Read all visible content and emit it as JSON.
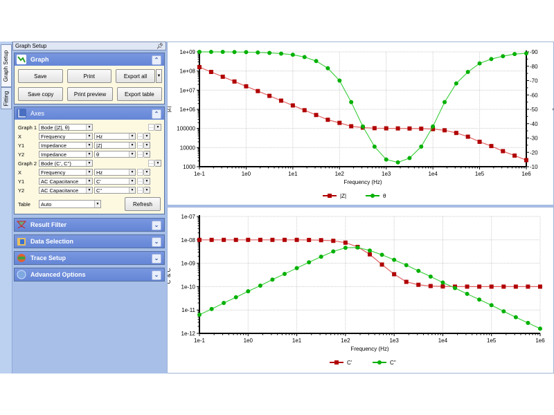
{
  "vertical_tabs": [
    {
      "label": "Graph Setup",
      "active": true
    },
    {
      "label": "Fitting",
      "active": false
    }
  ],
  "panel": {
    "title": "Graph Setup",
    "pin_icon": "pin-icon"
  },
  "graph_section": {
    "title": "Graph",
    "buttons": {
      "save": "Save",
      "print": "Print",
      "export_all": "Export all",
      "save_copy": "Save copy",
      "print_preview": "Print preview",
      "export_table": "Export table"
    }
  },
  "axes_section": {
    "title": "Axes",
    "rows": [
      {
        "label": "Graph 1",
        "quantity": "Bode (|Z|, θ)",
        "unit": ""
      },
      {
        "label": "X",
        "quantity": "Frequency",
        "unit": "Hz"
      },
      {
        "label": "Y1",
        "quantity": "Impedance",
        "unit": "|Z|"
      },
      {
        "label": "Y2",
        "quantity": "Impedance",
        "unit": "θ"
      },
      {
        "label": "Graph 2",
        "quantity": "Bode (C', C'')",
        "unit": ""
      },
      {
        "label": "X",
        "quantity": "Frequency",
        "unit": "Hz"
      },
      {
        "label": "Y1",
        "quantity": "AC Capacitance",
        "unit": "C'"
      },
      {
        "label": "Y2",
        "quantity": "AC Capacitance",
        "unit": "C''"
      }
    ],
    "table_label": "Table",
    "table_value": "Auto",
    "refresh": "Refresh"
  },
  "collapsed_sections": [
    {
      "title": "Result Filter",
      "icon": "filter-icon"
    },
    {
      "title": "Data Selection",
      "icon": "data-selection-icon"
    },
    {
      "title": "Trace Setup",
      "icon": "trace-setup-icon"
    },
    {
      "title": "Advanced Options",
      "icon": "advanced-options-icon"
    }
  ],
  "colors": {
    "series1": "#b00000",
    "series2": "#00b000",
    "line2": "#44d044",
    "section_head": "#6a8ad8",
    "panel_bg": "#a8c0e8",
    "body_bg": "#fdf9e1"
  },
  "chart_data": [
    {
      "type": "line",
      "title": "",
      "xlabel": "Frequency (Hz)",
      "ylabel": "|Z|",
      "y2label": "θ",
      "x_scale": "log",
      "y_scale": "log",
      "xlim": [
        0.1,
        1000000
      ],
      "ylim": [
        1000,
        1000000000
      ],
      "y2lim": [
        -10,
        -90
      ],
      "x_ticks": [
        "1e-1",
        "1e0",
        "1e1",
        "1e2",
        "1e3",
        "1e4",
        "1e5",
        "1e6"
      ],
      "y_ticks": [
        "1000",
        "10000",
        "100000",
        "1e+06",
        "1e+07",
        "1e+08",
        "1e+09"
      ],
      "y2_ticks": [
        "-10",
        "-20",
        "-30",
        "-40",
        "-50",
        "-60",
        "-70",
        "-80",
        "-90"
      ],
      "grid": true,
      "legend": [
        "|Z|",
        "θ"
      ],
      "legend_position": "bottom",
      "series": [
        {
          "name": "|Z|",
          "axis": "y1",
          "marker": "square",
          "color": "#b00000",
          "x": [
            0.1,
            0.178,
            0.316,
            0.562,
            1,
            1.78,
            3.16,
            5.62,
            10,
            17.8,
            31.6,
            56.2,
            100,
            178,
            316,
            562,
            1000,
            1780,
            3160,
            5620,
            10000,
            17800,
            31600,
            56200,
            100000,
            178000,
            316000,
            562000,
            1000000
          ],
          "values": [
            159000000,
            89500000,
            50300000,
            28300000,
            15900000,
            8950000,
            5030000,
            2830000,
            1590000,
            895000,
            503000,
            283000,
            195000,
            130000,
            110000,
            103000,
            101000,
            100000,
            99000,
            97000,
            92000,
            80000,
            58000,
            37000,
            20000,
            12000,
            6500,
            3800,
            2200
          ]
        },
        {
          "name": "θ",
          "axis": "y2",
          "marker": "circle",
          "color": "#00b000",
          "x": [
            0.1,
            0.178,
            0.316,
            0.562,
            1,
            1.78,
            3.16,
            5.62,
            10,
            17.8,
            31.6,
            56.2,
            100,
            178,
            316,
            562,
            1000,
            1780,
            3160,
            5620,
            10000,
            17800,
            31600,
            56200,
            100000,
            178000,
            316000,
            562000,
            1000000
          ],
          "values": [
            -90,
            -90,
            -90,
            -89.9,
            -89.8,
            -89.6,
            -89.3,
            -88.8,
            -88,
            -86.4,
            -83.6,
            -78.6,
            -70,
            -55,
            -38,
            -24,
            -15,
            -13,
            -16,
            -24,
            -38,
            -55,
            -68,
            -76,
            -82,
            -85,
            -87,
            -88.5,
            -89
          ]
        }
      ]
    },
    {
      "type": "line",
      "title": "",
      "xlabel": "Frequency (Hz)",
      "ylabel": "C' & C''",
      "x_scale": "log",
      "y_scale": "log",
      "xlim": [
        0.1,
        1000000
      ],
      "ylim": [
        1e-12,
        1e-07
      ],
      "x_ticks": [
        "1e-1",
        "1e0",
        "1e1",
        "1e2",
        "1e3",
        "1e4",
        "1e5",
        "1e6"
      ],
      "y_ticks": [
        "1e-12",
        "1e-11",
        "1e-10",
        "1e-09",
        "1e-08",
        "1e-07"
      ],
      "grid": true,
      "legend": [
        "C'",
        "C''"
      ],
      "legend_position": "bottom",
      "series": [
        {
          "name": "C'",
          "marker": "square",
          "color": "#b00000",
          "x": [
            0.1,
            0.178,
            0.316,
            0.562,
            1,
            1.78,
            3.16,
            5.62,
            10,
            17.8,
            31.6,
            56.2,
            100,
            178,
            316,
            562,
            1000,
            1780,
            3160,
            5620,
            10000,
            17800,
            31600,
            56200,
            100000,
            178000,
            316000,
            562000,
            1000000
          ],
          "values": [
            1e-08,
            1e-08,
            1e-08,
            1e-08,
            1e-08,
            1e-08,
            1e-08,
            1e-08,
            1e-08,
            9.9e-09,
            9.7e-09,
            9.1e-09,
            7.6e-09,
            5e-09,
            2.4e-09,
            8.8e-10,
            3.4e-10,
            1.6e-10,
            1.2e-10,
            1.06e-10,
            1.02e-10,
            1e-10,
            1e-10,
            1e-10,
            1e-10,
            1e-10,
            1e-10,
            1e-10,
            1e-10
          ]
        },
        {
          "name": "C''",
          "marker": "circle",
          "color": "#00b000",
          "x": [
            0.1,
            0.178,
            0.316,
            0.562,
            1,
            1.78,
            3.16,
            5.62,
            10,
            17.8,
            31.6,
            56.2,
            100,
            178,
            316,
            562,
            1000,
            1780,
            3160,
            5620,
            10000,
            17800,
            31600,
            56200,
            100000,
            178000,
            316000,
            562000,
            1000000
          ],
          "values": [
            6.3e-12,
            1.1e-11,
            2e-11,
            3.5e-11,
            6.3e-11,
            1.1e-10,
            2e-10,
            3.5e-10,
            6.2e-10,
            1.1e-09,
            1.9e-09,
            3.2e-09,
            4.6e-09,
            4.7e-09,
            3.5e-09,
            2.3e-09,
            1.4e-09,
            8.3e-10,
            4.7e-10,
            2.7e-10,
            1.5e-10,
            8.7e-11,
            4.9e-11,
            2.8e-11,
            1.6e-11,
            8.8e-12,
            4.9e-12,
            2.8e-12,
            1.6e-12
          ]
        }
      ]
    }
  ]
}
